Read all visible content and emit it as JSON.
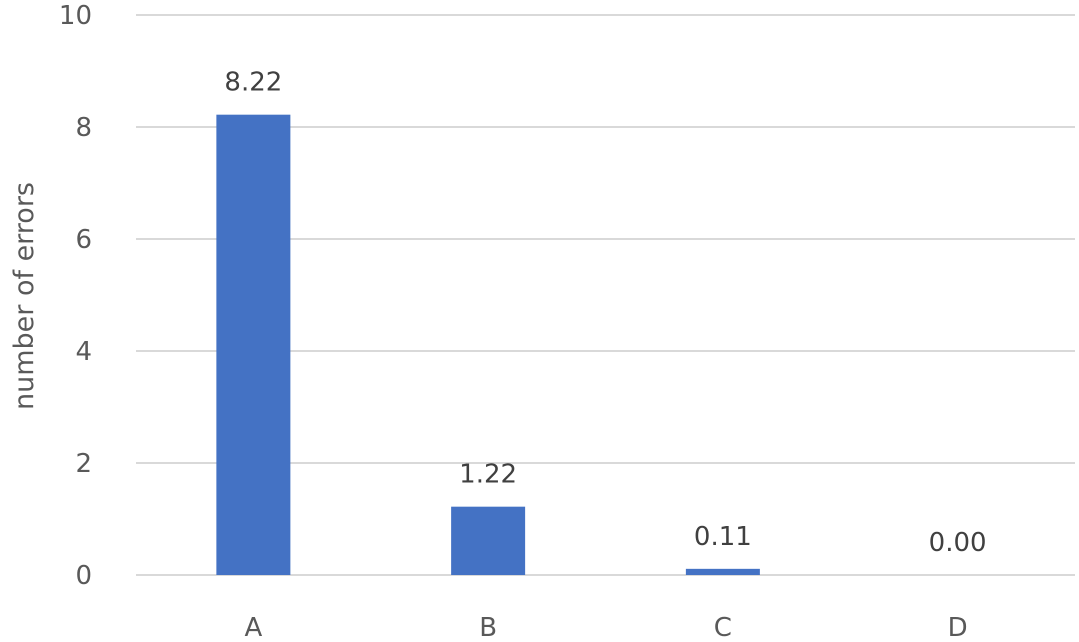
{
  "chart_data": {
    "type": "bar",
    "categories": [
      "A",
      "B",
      "C",
      "D"
    ],
    "values": [
      8.22,
      1.22,
      0.11,
      0.0
    ],
    "data_labels": [
      "8.22",
      "1.22",
      "0.11",
      "0.00"
    ],
    "title": "",
    "xlabel": "",
    "ylabel": "number of errors",
    "ylim": [
      0,
      10
    ],
    "yticks": [
      0,
      2,
      4,
      6,
      8,
      10
    ],
    "grid": true,
    "legend": "none",
    "colors": {
      "bar": "#4472c4"
    }
  }
}
